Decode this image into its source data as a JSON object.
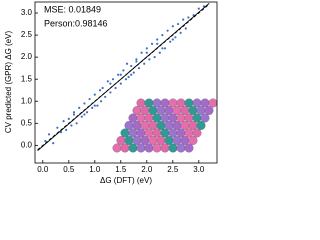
{
  "chart_data": {
    "type": "scatter",
    "xlabel": "ΔG (DFT) (eV)",
    "ylabel": "CV predicted (GPR) ΔG (eV)",
    "annotations": [
      "MSE: 0.01849",
      "Person:0.98146"
    ],
    "xlim": [
      -0.15,
      3.35
    ],
    "ylim": [
      -0.4,
      3.25
    ],
    "xticks": [
      {
        "value": 0,
        "label": "0.0"
      },
      0.5,
      {
        "value": 1,
        "label": "1.0"
      },
      1.5,
      {
        "value": 2,
        "label": "2.0"
      },
      2.5,
      {
        "value": 3,
        "label": "3.0"
      }
    ],
    "yticks": [
      {
        "value": 0,
        "label": "0.0"
      },
      0.5,
      {
        "value": 1,
        "label": "1.0"
      },
      1.5,
      {
        "value": 2,
        "label": "2.0"
      },
      2.5,
      {
        "value": 3,
        "label": "3.0"
      }
    ],
    "color": "#3b6fc6",
    "x": [
      0.05,
      0.12,
      0.2,
      0.28,
      0.35,
      0.4,
      0.45,
      0.5,
      0.55,
      0.6,
      0.65,
      0.7,
      0.75,
      0.8,
      0.85,
      0.9,
      0.95,
      1.0,
      1.05,
      1.1,
      1.12,
      1.15,
      1.2,
      1.25,
      1.3,
      1.35,
      1.4,
      1.45,
      1.5,
      1.55,
      1.6,
      1.62,
      1.65,
      1.7,
      1.75,
      1.8,
      1.85,
      1.9,
      1.95,
      2.0,
      2.05,
      2.1,
      2.15,
      2.2,
      2.25,
      2.3,
      2.35,
      2.4,
      2.45,
      2.5,
      2.55,
      2.6,
      2.65,
      2.7,
      2.75,
      2.8,
      2.9,
      3.0,
      3.1,
      1.0,
      1.5,
      2.0,
      2.5,
      0.8,
      1.3,
      1.8,
      2.3,
      0.6,
      1.7,
      2.2
    ],
    "y": [
      0.1,
      0.25,
      0.05,
      0.4,
      0.3,
      0.55,
      0.35,
      0.6,
      0.45,
      0.75,
      0.5,
      0.85,
      0.65,
      0.95,
      0.75,
      1.05,
      0.85,
      1.15,
      0.9,
      1.25,
      1.0,
      1.3,
      1.1,
      1.45,
      1.2,
      1.5,
      1.3,
      1.6,
      1.4,
      1.7,
      1.5,
      1.85,
      1.55,
      1.8,
      1.65,
      1.95,
      1.75,
      2.1,
      1.85,
      2.2,
      1.95,
      2.3,
      2.0,
      2.4,
      2.1,
      2.5,
      2.2,
      2.6,
      2.35,
      2.7,
      2.45,
      2.75,
      2.55,
      2.85,
      2.65,
      2.9,
      2.95,
      3.1,
      3.15,
      0.9,
      1.6,
      2.1,
      2.4,
      0.7,
      1.4,
      1.9,
      2.2,
      0.7,
      1.6,
      2.3
    ],
    "lines": [
      {
        "x": [
          -0.1,
          3.2
        ],
        "y": [
          -0.12,
          3.22
        ],
        "color": "#000000",
        "dashed": false
      },
      {
        "x": [
          -0.1,
          3.2
        ],
        "y": [
          -0.1,
          3.2
        ],
        "color": "#000000",
        "dashed": true
      }
    ]
  }
}
